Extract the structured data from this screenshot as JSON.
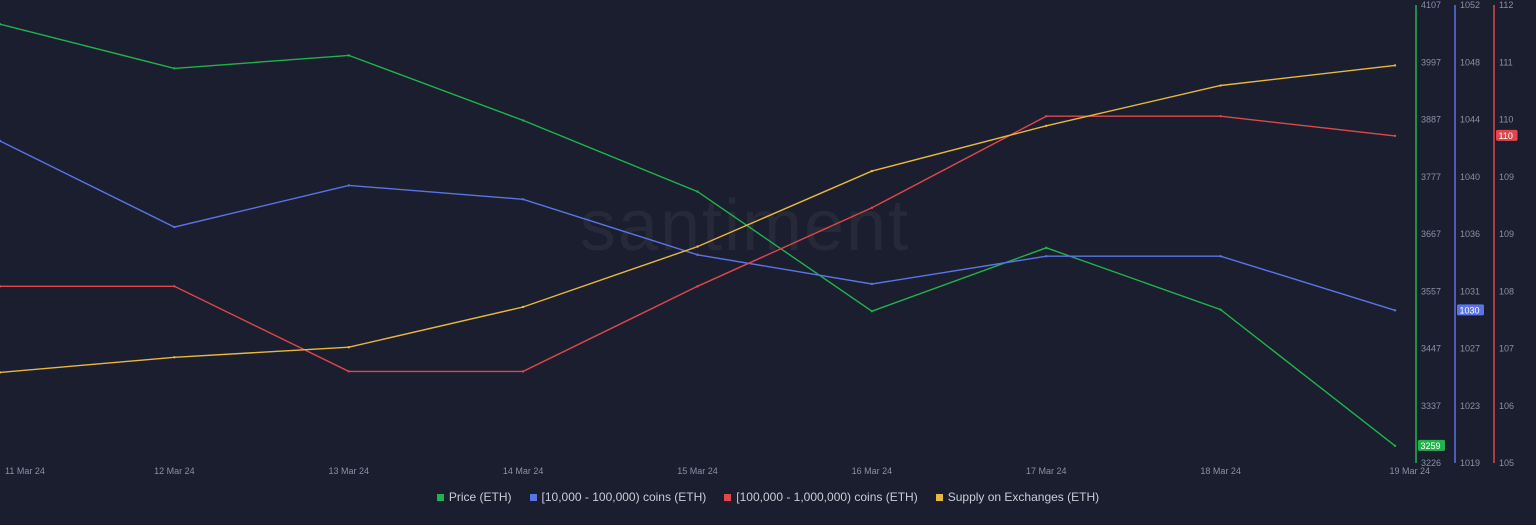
{
  "watermark": "santiment",
  "colors": {
    "background": "#1b1e2e",
    "price": "#22b24c",
    "whales_10k": "#5a74e6",
    "whales_100k": "#e0474c",
    "supply": "#e8b83e"
  },
  "chart_data": {
    "type": "line",
    "x": [
      "11 Mar 24",
      "12 Mar 24",
      "13 Mar 24",
      "14 Mar 24",
      "15 Mar 24",
      "16 Mar 24",
      "17 Mar 24",
      "18 Mar 24",
      "19 Mar 24"
    ],
    "series": [
      {
        "name": "Price (ETH)",
        "axis": "price",
        "color": "#22b24c",
        "values": [
          4070,
          3985,
          4010,
          3885,
          3748,
          3518,
          3640,
          3521,
          3259
        ]
      },
      {
        "name": "[10,000 - 100,000) coins (ETH)",
        "axis": "whales_10k",
        "color": "#5a74e6",
        "values": [
          1042.2,
          1036.0,
          1039.0,
          1038.0,
          1034.0,
          1031.9,
          1033.9,
          1033.9,
          1030
        ]
      },
      {
        "name": "[100,000  - 1,000,000) coins (ETH)",
        "axis": "whales_100k",
        "color": "#e0474c",
        "values": [
          107.7,
          107.7,
          106.4,
          106.4,
          107.7,
          108.9,
          110.3,
          110.3,
          110
        ]
      },
      {
        "name": "Supply on Exchanges (ETH)",
        "axis": "supply",
        "color": "#e8b83e",
        "values": [
          106.0,
          106.3,
          106.5,
          107.3,
          108.5,
          110.0,
          110.9,
          111.7,
          112.1
        ]
      }
    ],
    "axes": {
      "price": {
        "ticks": [
          "4107",
          "3997",
          "3887",
          "3777",
          "3667",
          "3557",
          "3447",
          "3337",
          "3226"
        ],
        "range": [
          3226,
          4107
        ],
        "color": "#22b24c",
        "last_label": "3259"
      },
      "whales_10k": {
        "ticks": [
          "1052",
          "1048",
          "1044",
          "1040",
          "1036",
          "1031",
          "1027",
          "1023",
          "1019"
        ],
        "range": [
          1019,
          1052
        ],
        "color": "#5a74e6",
        "last_label": "1030"
      },
      "whales_100k": {
        "ticks": [
          "112",
          "111",
          "110",
          "109",
          "109",
          "108",
          "107",
          "106",
          "105"
        ],
        "range": [
          105,
          112
        ],
        "color": "#e0474c",
        "last_label": "110"
      },
      "supply": {
        "range": [
          104.2,
          113.3
        ]
      }
    },
    "grid": false,
    "legend": "bottom"
  }
}
